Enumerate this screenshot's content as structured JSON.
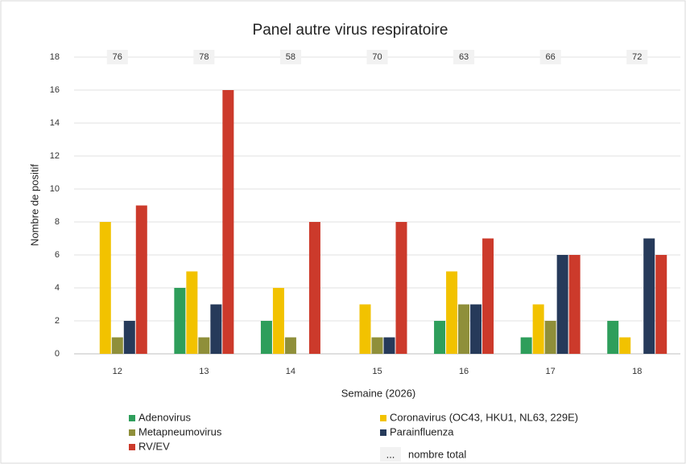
{
  "chart_data": {
    "type": "bar",
    "title": "Panel autre virus respiratoire",
    "x_label": "Semaine (2026)",
    "y_label": "Nombre de positif",
    "categories": [
      "12",
      "13",
      "14",
      "15",
      "16",
      "17",
      "18"
    ],
    "series": [
      {
        "name": "Adenovirus",
        "color": "#2e9e5b",
        "values": [
          0,
          4,
          2,
          0,
          2,
          1,
          2
        ]
      },
      {
        "name": "Coronavirus (OC43, HKU1, NL63, 229E)",
        "color": "#f2c200",
        "values": [
          8,
          5,
          4,
          3,
          5,
          3,
          1
        ]
      },
      {
        "name": "Metapneumovirus",
        "color": "#8f8f3a",
        "values": [
          1,
          1,
          1,
          1,
          3,
          2,
          0
        ]
      },
      {
        "name": "Parainfluenza",
        "color": "#263a5a",
        "values": [
          2,
          3,
          0,
          1,
          3,
          6,
          7
        ]
      },
      {
        "name": "RV/EV",
        "color": "#cc3a2b",
        "values": [
          9,
          16,
          8,
          8,
          7,
          6,
          6
        ]
      }
    ],
    "totals": [
      76,
      78,
      58,
      70,
      63,
      66,
      72
    ],
    "totals_legend": {
      "symbol": "...",
      "label": "nombre total"
    },
    "ylim": [
      0,
      18
    ],
    "yticks": [
      0,
      2,
      4,
      6,
      8,
      10,
      12,
      14,
      16,
      18
    ],
    "grid": true
  }
}
